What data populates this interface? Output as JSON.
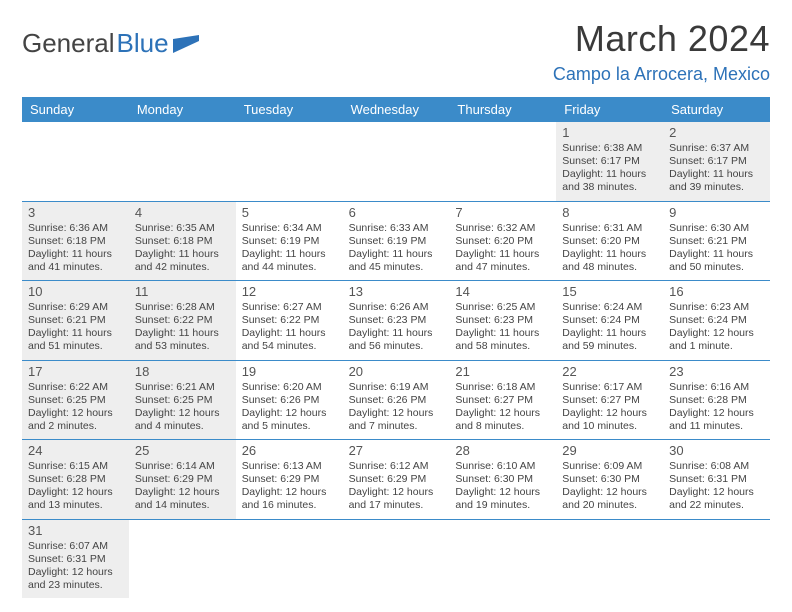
{
  "logo": {
    "general": "General",
    "blue": "Blue"
  },
  "title": "March 2024",
  "location": "Campo la Arrocera, Mexico",
  "weekdays": [
    "Sunday",
    "Monday",
    "Tuesday",
    "Wednesday",
    "Thursday",
    "Friday",
    "Saturday"
  ],
  "colors": {
    "header_bg": "#3b8bc9",
    "header_text": "#ffffff",
    "accent": "#2d72b8",
    "shaded": "#eeeeee"
  },
  "weeks": [
    [
      {
        "empty": true
      },
      {
        "empty": true
      },
      {
        "empty": true
      },
      {
        "empty": true
      },
      {
        "empty": true
      },
      {
        "num": "1",
        "shaded": true,
        "sunrise": "Sunrise: 6:38 AM",
        "sunset": "Sunset: 6:17 PM",
        "daylight": "Daylight: 11 hours and 38 minutes."
      },
      {
        "num": "2",
        "shaded": true,
        "sunrise": "Sunrise: 6:37 AM",
        "sunset": "Sunset: 6:17 PM",
        "daylight": "Daylight: 11 hours and 39 minutes."
      }
    ],
    [
      {
        "num": "3",
        "shaded": true,
        "sunrise": "Sunrise: 6:36 AM",
        "sunset": "Sunset: 6:18 PM",
        "daylight": "Daylight: 11 hours and 41 minutes."
      },
      {
        "num": "4",
        "shaded": true,
        "sunrise": "Sunrise: 6:35 AM",
        "sunset": "Sunset: 6:18 PM",
        "daylight": "Daylight: 11 hours and 42 minutes."
      },
      {
        "num": "5",
        "shaded": false,
        "sunrise": "Sunrise: 6:34 AM",
        "sunset": "Sunset: 6:19 PM",
        "daylight": "Daylight: 11 hours and 44 minutes."
      },
      {
        "num": "6",
        "shaded": false,
        "sunrise": "Sunrise: 6:33 AM",
        "sunset": "Sunset: 6:19 PM",
        "daylight": "Daylight: 11 hours and 45 minutes."
      },
      {
        "num": "7",
        "shaded": false,
        "sunrise": "Sunrise: 6:32 AM",
        "sunset": "Sunset: 6:20 PM",
        "daylight": "Daylight: 11 hours and 47 minutes."
      },
      {
        "num": "8",
        "shaded": false,
        "sunrise": "Sunrise: 6:31 AM",
        "sunset": "Sunset: 6:20 PM",
        "daylight": "Daylight: 11 hours and 48 minutes."
      },
      {
        "num": "9",
        "shaded": false,
        "sunrise": "Sunrise: 6:30 AM",
        "sunset": "Sunset: 6:21 PM",
        "daylight": "Daylight: 11 hours and 50 minutes."
      }
    ],
    [
      {
        "num": "10",
        "shaded": true,
        "sunrise": "Sunrise: 6:29 AM",
        "sunset": "Sunset: 6:21 PM",
        "daylight": "Daylight: 11 hours and 51 minutes."
      },
      {
        "num": "11",
        "shaded": true,
        "sunrise": "Sunrise: 6:28 AM",
        "sunset": "Sunset: 6:22 PM",
        "daylight": "Daylight: 11 hours and 53 minutes."
      },
      {
        "num": "12",
        "shaded": false,
        "sunrise": "Sunrise: 6:27 AM",
        "sunset": "Sunset: 6:22 PM",
        "daylight": "Daylight: 11 hours and 54 minutes."
      },
      {
        "num": "13",
        "shaded": false,
        "sunrise": "Sunrise: 6:26 AM",
        "sunset": "Sunset: 6:23 PM",
        "daylight": "Daylight: 11 hours and 56 minutes."
      },
      {
        "num": "14",
        "shaded": false,
        "sunrise": "Sunrise: 6:25 AM",
        "sunset": "Sunset: 6:23 PM",
        "daylight": "Daylight: 11 hours and 58 minutes."
      },
      {
        "num": "15",
        "shaded": false,
        "sunrise": "Sunrise: 6:24 AM",
        "sunset": "Sunset: 6:24 PM",
        "daylight": "Daylight: 11 hours and 59 minutes."
      },
      {
        "num": "16",
        "shaded": false,
        "sunrise": "Sunrise: 6:23 AM",
        "sunset": "Sunset: 6:24 PM",
        "daylight": "Daylight: 12 hours and 1 minute."
      }
    ],
    [
      {
        "num": "17",
        "shaded": true,
        "sunrise": "Sunrise: 6:22 AM",
        "sunset": "Sunset: 6:25 PM",
        "daylight": "Daylight: 12 hours and 2 minutes."
      },
      {
        "num": "18",
        "shaded": true,
        "sunrise": "Sunrise: 6:21 AM",
        "sunset": "Sunset: 6:25 PM",
        "daylight": "Daylight: 12 hours and 4 minutes."
      },
      {
        "num": "19",
        "shaded": false,
        "sunrise": "Sunrise: 6:20 AM",
        "sunset": "Sunset: 6:26 PM",
        "daylight": "Daylight: 12 hours and 5 minutes."
      },
      {
        "num": "20",
        "shaded": false,
        "sunrise": "Sunrise: 6:19 AM",
        "sunset": "Sunset: 6:26 PM",
        "daylight": "Daylight: 12 hours and 7 minutes."
      },
      {
        "num": "21",
        "shaded": false,
        "sunrise": "Sunrise: 6:18 AM",
        "sunset": "Sunset: 6:27 PM",
        "daylight": "Daylight: 12 hours and 8 minutes."
      },
      {
        "num": "22",
        "shaded": false,
        "sunrise": "Sunrise: 6:17 AM",
        "sunset": "Sunset: 6:27 PM",
        "daylight": "Daylight: 12 hours and 10 minutes."
      },
      {
        "num": "23",
        "shaded": false,
        "sunrise": "Sunrise: 6:16 AM",
        "sunset": "Sunset: 6:28 PM",
        "daylight": "Daylight: 12 hours and 11 minutes."
      }
    ],
    [
      {
        "num": "24",
        "shaded": true,
        "sunrise": "Sunrise: 6:15 AM",
        "sunset": "Sunset: 6:28 PM",
        "daylight": "Daylight: 12 hours and 13 minutes."
      },
      {
        "num": "25",
        "shaded": true,
        "sunrise": "Sunrise: 6:14 AM",
        "sunset": "Sunset: 6:29 PM",
        "daylight": "Daylight: 12 hours and 14 minutes."
      },
      {
        "num": "26",
        "shaded": false,
        "sunrise": "Sunrise: 6:13 AM",
        "sunset": "Sunset: 6:29 PM",
        "daylight": "Daylight: 12 hours and 16 minutes."
      },
      {
        "num": "27",
        "shaded": false,
        "sunrise": "Sunrise: 6:12 AM",
        "sunset": "Sunset: 6:29 PM",
        "daylight": "Daylight: 12 hours and 17 minutes."
      },
      {
        "num": "28",
        "shaded": false,
        "sunrise": "Sunrise: 6:10 AM",
        "sunset": "Sunset: 6:30 PM",
        "daylight": "Daylight: 12 hours and 19 minutes."
      },
      {
        "num": "29",
        "shaded": false,
        "sunrise": "Sunrise: 6:09 AM",
        "sunset": "Sunset: 6:30 PM",
        "daylight": "Daylight: 12 hours and 20 minutes."
      },
      {
        "num": "30",
        "shaded": false,
        "sunrise": "Sunrise: 6:08 AM",
        "sunset": "Sunset: 6:31 PM",
        "daylight": "Daylight: 12 hours and 22 minutes."
      }
    ],
    [
      {
        "num": "31",
        "shaded": true,
        "sunrise": "Sunrise: 6:07 AM",
        "sunset": "Sunset: 6:31 PM",
        "daylight": "Daylight: 12 hours and 23 minutes."
      },
      {
        "empty": true
      },
      {
        "empty": true
      },
      {
        "empty": true
      },
      {
        "empty": true
      },
      {
        "empty": true
      },
      {
        "empty": true
      }
    ]
  ]
}
